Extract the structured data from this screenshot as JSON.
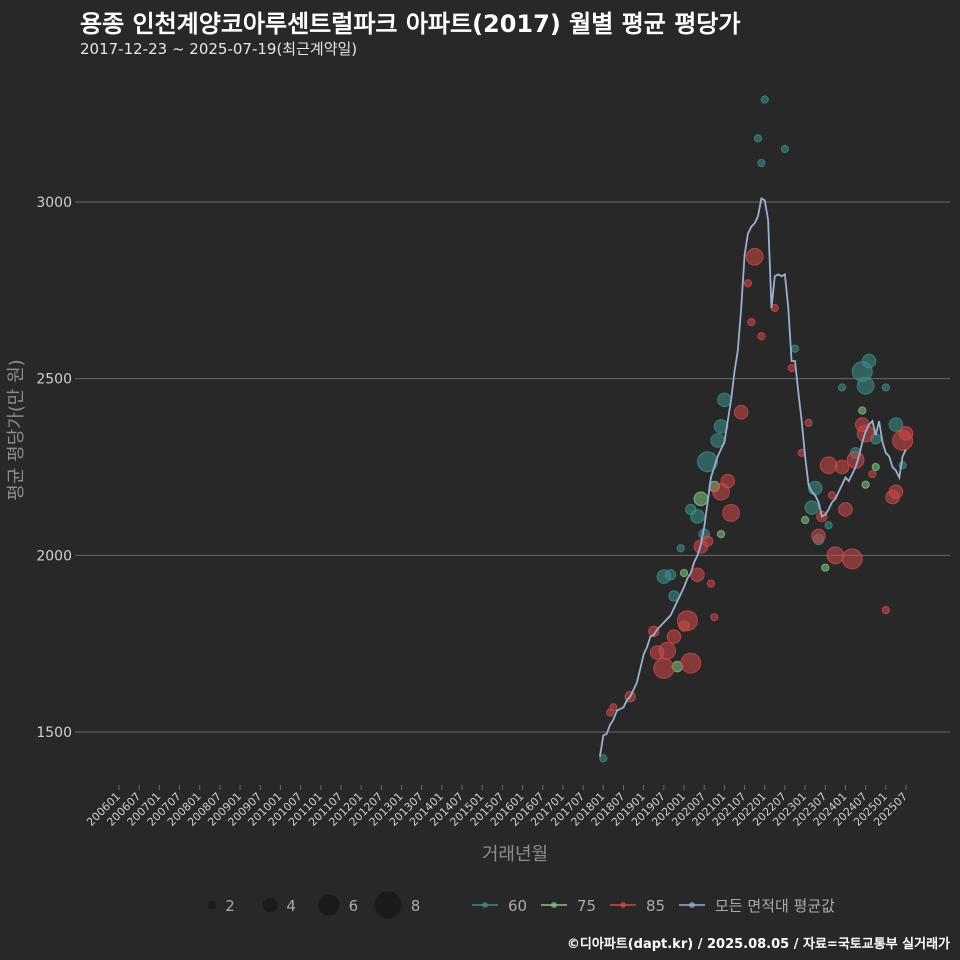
{
  "chart_data": {
    "type": "scatter",
    "title": "용종 인천계양코아루센트럴파크 아파트(2017) 월별 평균 평당가",
    "subtitle": "2017-12-23 ~ 2025-07-19(최근계약일)",
    "xlabel": "거래년월",
    "ylabel": "평균 평당가(만 원)",
    "ylim": [
      1350,
      3450
    ],
    "yticks": [
      1500,
      2000,
      2500,
      3000
    ],
    "xticks": [
      "200601",
      "200607",
      "200701",
      "200707",
      "200801",
      "200807",
      "200901",
      "200907",
      "201001",
      "201007",
      "201101",
      "201107",
      "201201",
      "201207",
      "201301",
      "201307",
      "201401",
      "201407",
      "201501",
      "201507",
      "201601",
      "201607",
      "201701",
      "201707",
      "201801",
      "201807",
      "201901",
      "201907",
      "202001",
      "202007",
      "202101",
      "202107",
      "202201",
      "202207",
      "202301",
      "202307",
      "202401",
      "202407",
      "202501",
      "202507"
    ],
    "size_legend": [
      2,
      4,
      6,
      8
    ],
    "series": [
      {
        "name": "60",
        "color": "#3a8f8a",
        "points": [
          [
            "2018-01",
            1425,
            1
          ],
          [
            "2019-07",
            1940,
            3
          ],
          [
            "2019-09",
            1945,
            2
          ],
          [
            "2019-10",
            1885,
            2
          ],
          [
            "2019-12",
            2020,
            1
          ],
          [
            "2020-03",
            2130,
            2
          ],
          [
            "2020-05",
            2110,
            3
          ],
          [
            "2020-07",
            2060,
            2
          ],
          [
            "2020-08",
            2265,
            5
          ],
          [
            "2020-11",
            2325,
            3
          ],
          [
            "2020-12",
            2365,
            3
          ],
          [
            "2021-01",
            2440,
            3
          ],
          [
            "2021-11",
            3180,
            1
          ],
          [
            "2021-12",
            3110,
            1
          ],
          [
            "2022-01",
            3290,
            1
          ],
          [
            "2022-07",
            3150,
            1
          ],
          [
            "2022-10",
            2585,
            1
          ],
          [
            "2023-03",
            2135,
            3
          ],
          [
            "2023-04",
            2190,
            3
          ],
          [
            "2023-05",
            2045,
            2
          ],
          [
            "2023-08",
            2085,
            1
          ],
          [
            "2023-12",
            2475,
            1
          ],
          [
            "2024-04",
            2290,
            2
          ],
          [
            "2024-06",
            2520,
            5
          ],
          [
            "2024-07",
            2480,
            4
          ],
          [
            "2024-08",
            2550,
            3
          ],
          [
            "2024-10",
            2330,
            2
          ],
          [
            "2025-01",
            2475,
            1
          ],
          [
            "2025-04",
            2370,
            3
          ],
          [
            "2025-06",
            2255,
            1
          ]
        ]
      },
      {
        "name": "75",
        "color": "#7fc97f",
        "points": [
          [
            "2019-11",
            1685,
            2
          ],
          [
            "2020-01",
            1950,
            1
          ],
          [
            "2020-06",
            2160,
            3
          ],
          [
            "2020-10",
            2195,
            2
          ],
          [
            "2020-12",
            2060,
            1
          ],
          [
            "2023-01",
            2100,
            1
          ],
          [
            "2023-07",
            1965,
            1
          ],
          [
            "2024-06",
            2410,
            1
          ],
          [
            "2024-07",
            2200,
            1
          ],
          [
            "2024-10",
            2250,
            1
          ]
        ]
      },
      {
        "name": "85",
        "color": "#d04848",
        "points": [
          [
            "2018-03",
            1555,
            1
          ],
          [
            "2018-04",
            1570,
            1
          ],
          [
            "2018-09",
            1600,
            2
          ],
          [
            "2019-04",
            1785,
            2
          ],
          [
            "2019-05",
            1725,
            3
          ],
          [
            "2019-07",
            1680,
            5
          ],
          [
            "2019-08",
            1730,
            4
          ],
          [
            "2019-10",
            1770,
            3
          ],
          [
            "2020-01",
            1800,
            2
          ],
          [
            "2020-02",
            1815,
            5
          ],
          [
            "2020-03",
            1695,
            5
          ],
          [
            "2020-05",
            1945,
            3
          ],
          [
            "2020-06",
            2025,
            3
          ],
          [
            "2020-08",
            2040,
            2
          ],
          [
            "2020-09",
            1920,
            1
          ],
          [
            "2020-10",
            1825,
            1
          ],
          [
            "2020-12",
            2180,
            4
          ],
          [
            "2021-02",
            2210,
            3
          ],
          [
            "2021-03",
            2120,
            4
          ],
          [
            "2021-06",
            2405,
            3
          ],
          [
            "2021-08",
            2770,
            1
          ],
          [
            "2021-09",
            2660,
            1
          ],
          [
            "2021-10",
            2845,
            4
          ],
          [
            "2021-12",
            2620,
            1
          ],
          [
            "2022-04",
            2700,
            1
          ],
          [
            "2022-09",
            2530,
            1
          ],
          [
            "2022-12",
            2290,
            1
          ],
          [
            "2023-02",
            2375,
            1
          ],
          [
            "2023-05",
            2055,
            3
          ],
          [
            "2023-06",
            2110,
            2
          ],
          [
            "2023-08",
            2255,
            4
          ],
          [
            "2023-09",
            2170,
            1
          ],
          [
            "2023-10",
            2000,
            4
          ],
          [
            "2023-12",
            2250,
            3
          ],
          [
            "2024-01",
            2130,
            3
          ],
          [
            "2024-03",
            1990,
            5
          ],
          [
            "2024-04",
            2270,
            4
          ],
          [
            "2024-06",
            2370,
            3
          ],
          [
            "2024-07",
            2345,
            4
          ],
          [
            "2024-09",
            2230,
            1
          ],
          [
            "2025-01",
            1845,
            1
          ],
          [
            "2025-03",
            2165,
            3
          ],
          [
            "2025-04",
            2180,
            3
          ],
          [
            "2025-06",
            2325,
            5
          ],
          [
            "2025-07",
            2345,
            3
          ]
        ]
      },
      {
        "name": "모든 면적대 평균값",
        "color": "#9ab0d0",
        "line": [
          [
            "2017-12",
            1430
          ],
          [
            "2018-01",
            1490
          ],
          [
            "2018-02",
            1495
          ],
          [
            "2018-03",
            1520
          ],
          [
            "2018-04",
            1535
          ],
          [
            "2018-05",
            1560
          ],
          [
            "2018-06",
            1565
          ],
          [
            "2018-07",
            1570
          ],
          [
            "2018-08",
            1590
          ],
          [
            "2018-09",
            1600
          ],
          [
            "2018-10",
            1620
          ],
          [
            "2018-11",
            1640
          ],
          [
            "2018-12",
            1680
          ],
          [
            "2019-01",
            1720
          ],
          [
            "2019-02",
            1740
          ],
          [
            "2019-03",
            1770
          ],
          [
            "2019-04",
            1775
          ],
          [
            "2019-05",
            1790
          ],
          [
            "2019-06",
            1800
          ],
          [
            "2019-07",
            1810
          ],
          [
            "2019-08",
            1820
          ],
          [
            "2019-09",
            1830
          ],
          [
            "2019-10",
            1850
          ],
          [
            "2019-11",
            1870
          ],
          [
            "2019-12",
            1890
          ],
          [
            "2020-01",
            1910
          ],
          [
            "2020-02",
            1935
          ],
          [
            "2020-03",
            1950
          ],
          [
            "2020-04",
            1980
          ],
          [
            "2020-05",
            2000
          ],
          [
            "2020-06",
            2030
          ],
          [
            "2020-07",
            2080
          ],
          [
            "2020-08",
            2150
          ],
          [
            "2020-09",
            2220
          ],
          [
            "2020-10",
            2250
          ],
          [
            "2020-11",
            2280
          ],
          [
            "2020-12",
            2300
          ],
          [
            "2021-01",
            2320
          ],
          [
            "2021-02",
            2380
          ],
          [
            "2021-03",
            2440
          ],
          [
            "2021-04",
            2520
          ],
          [
            "2021-05",
            2580
          ],
          [
            "2021-06",
            2700
          ],
          [
            "2021-07",
            2850
          ],
          [
            "2021-08",
            2910
          ],
          [
            "2021-09",
            2930
          ],
          [
            "2021-10",
            2940
          ],
          [
            "2021-11",
            2960
          ],
          [
            "2021-12",
            3010
          ],
          [
            "2022-01",
            3005
          ],
          [
            "2022-02",
            2950
          ],
          [
            "2022-03",
            2700
          ],
          [
            "2022-04",
            2790
          ],
          [
            "2022-05",
            2795
          ],
          [
            "2022-06",
            2790
          ],
          [
            "2022-07",
            2795
          ],
          [
            "2022-08",
            2700
          ],
          [
            "2022-09",
            2550
          ],
          [
            "2022-10",
            2550
          ],
          [
            "2022-11",
            2460
          ],
          [
            "2022-12",
            2380
          ],
          [
            "2023-01",
            2280
          ],
          [
            "2023-02",
            2200
          ],
          [
            "2023-03",
            2180
          ],
          [
            "2023-04",
            2170
          ],
          [
            "2023-05",
            2150
          ],
          [
            "2023-06",
            2110
          ],
          [
            "2023-07",
            2115
          ],
          [
            "2023-08",
            2130
          ],
          [
            "2023-09",
            2150
          ],
          [
            "2023-10",
            2160
          ],
          [
            "2023-11",
            2180
          ],
          [
            "2023-12",
            2200
          ],
          [
            "2024-01",
            2220
          ],
          [
            "2024-02",
            2210
          ],
          [
            "2024-03",
            2230
          ],
          [
            "2024-04",
            2250
          ],
          [
            "2024-05",
            2280
          ],
          [
            "2024-06",
            2320
          ],
          [
            "2024-07",
            2350
          ],
          [
            "2024-08",
            2370
          ],
          [
            "2024-09",
            2380
          ],
          [
            "2024-10",
            2340
          ],
          [
            "2024-11",
            2380
          ],
          [
            "2024-12",
            2320
          ],
          [
            "2025-01",
            2290
          ],
          [
            "2025-02",
            2280
          ],
          [
            "2025-03",
            2250
          ],
          [
            "2025-04",
            2240
          ],
          [
            "2025-05",
            2220
          ],
          [
            "2025-06",
            2280
          ],
          [
            "2025-07",
            2300
          ]
        ]
      }
    ]
  },
  "footer": "©디아파트(dapt.kr) / 2025.08.05 / 자료=국토교통부 실거래가"
}
